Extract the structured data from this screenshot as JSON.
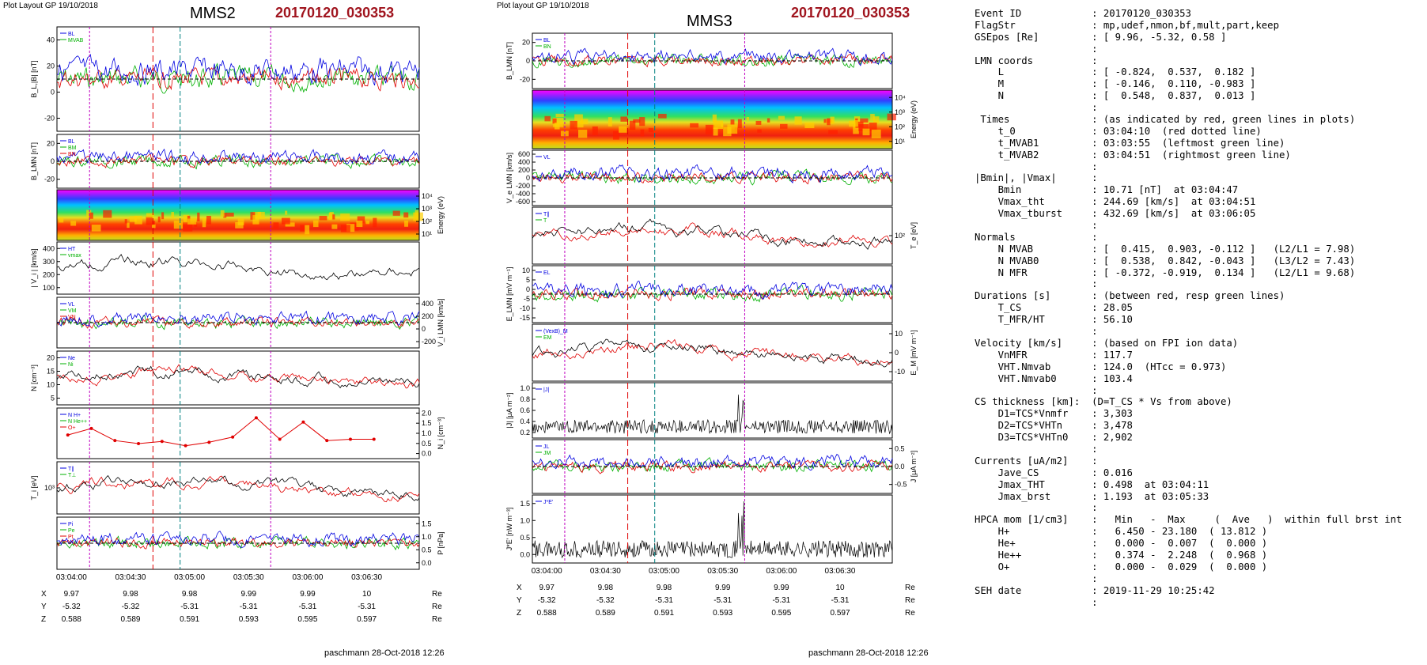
{
  "left_panel": {
    "header": "Plot Layout GP 19/10/2018",
    "spacecraft": "MMS2",
    "event_id": "20170120_030353",
    "footer": "paschmann 28-Oct-2018 12:26",
    "time_ticks": [
      "03:04:00",
      "03:04:30",
      "03:05:00",
      "03:05:30",
      "03:06:00",
      "03:06:30"
    ],
    "position_rows": [
      {
        "label": "X",
        "values": [
          "9.97",
          "9.98",
          "9.98",
          "9.99",
          "9.99",
          "10"
        ],
        "unit": "Re"
      },
      {
        "label": "Y",
        "values": [
          "-5.32",
          "-5.32",
          "-5.31",
          "-5.31",
          "-5.31",
          "-5.31"
        ],
        "unit": "Re"
      },
      {
        "label": "Z",
        "values": [
          "0.588",
          "0.589",
          "0.591",
          "0.593",
          "0.595",
          "0.597"
        ],
        "unit": "Re"
      }
    ],
    "panels": [
      {
        "ylabel": "B_L,|B| [nT]",
        "side": "left",
        "ticks": [
          "40",
          "20",
          "0",
          "-20"
        ],
        "legend": [
          "BL",
          "MVAB"
        ]
      },
      {
        "ylabel": "B_LMN [nT]",
        "side": "left",
        "ticks": [
          "20",
          "0",
          "-20"
        ],
        "legend": [
          "BL",
          "BM",
          "BN"
        ]
      },
      {
        "ylabel": "Energy (eV)",
        "side": "right",
        "ticks": [
          "10⁴",
          "10³",
          "10²",
          "10¹"
        ],
        "legend": []
      },
      {
        "ylabel": "| V_i | [km/s]",
        "side": "left",
        "ticks": [
          "400",
          "300",
          "200",
          "100"
        ],
        "legend": [
          "HT",
          "vmax"
        ]
      },
      {
        "ylabel": "V_i LMN [km/s]",
        "side": "right",
        "ticks": [
          "400",
          "200",
          "0",
          "-200"
        ],
        "legend": [
          "VL",
          "VM",
          "VN"
        ]
      },
      {
        "ylabel": "N [cm⁻³]",
        "side": "left",
        "ticks": [
          "20",
          "15",
          "10",
          "5"
        ],
        "legend": [
          "Ne",
          "Ni"
        ]
      },
      {
        "ylabel": "N_i [cm⁻³]",
        "side": "right",
        "ticks": [
          "2.0",
          "1.5",
          "1.0",
          "0.5",
          "0.0"
        ],
        "legend": [
          "N H+",
          "N He++",
          "O+"
        ]
      },
      {
        "ylabel": "T_i [eV]",
        "side": "left",
        "ticks": [
          "10³"
        ],
        "legend": [
          "T∥",
          "T⊥"
        ]
      },
      {
        "ylabel": "P [nPa]",
        "side": "right",
        "ticks": [
          "1.5",
          "1.0",
          "0.5",
          "0.0"
        ],
        "legend": [
          "Pi",
          "Pe",
          "Pt"
        ]
      }
    ]
  },
  "mid_panel": {
    "header": "Plot layout GP 19/10/2018",
    "spacecraft": "MMS3",
    "event_id": "20170120_030353",
    "footer": "paschmann 28-Oct-2018 12:26",
    "time_ticks": [
      "03:04:00",
      "03:04:30",
      "03:05:00",
      "03:05:30",
      "03:06:00",
      "03:06:30"
    ],
    "position_rows": [
      {
        "label": "X",
        "values": [
          "9.97",
          "9.98",
          "9.98",
          "9.99",
          "9.99",
          "10"
        ],
        "unit": "Re"
      },
      {
        "label": "Y",
        "values": [
          "-5.32",
          "-5.32",
          "-5.31",
          "-5.31",
          "-5.31",
          "-5.31"
        ],
        "unit": "Re"
      },
      {
        "label": "Z",
        "values": [
          "0.588",
          "0.589",
          "0.591",
          "0.593",
          "0.595",
          "0.597"
        ],
        "unit": "Re"
      }
    ],
    "panels": [
      {
        "ylabel": "B_LMN [nT]",
        "side": "left",
        "ticks": [
          "20",
          "0",
          "-20"
        ],
        "legend": [
          "BL",
          "BN"
        ]
      },
      {
        "ylabel": "Energy (eV)",
        "side": "right",
        "ticks": [
          "10⁴",
          "10³",
          "10²",
          "10¹"
        ],
        "legend": []
      },
      {
        "ylabel": "V_e LMN [km/s]",
        "side": "left",
        "ticks": [
          "600",
          "400",
          "200",
          "0",
          "-200",
          "-400",
          "-600"
        ],
        "legend": [
          "VL"
        ]
      },
      {
        "ylabel": "T_e [eV]",
        "side": "right",
        "ticks": [
          "10²"
        ],
        "legend": [
          "T∥",
          "T"
        ]
      },
      {
        "ylabel": "E_LMN [mV m⁻¹]",
        "side": "left",
        "ticks": [
          "10",
          "5",
          "0",
          "-5",
          "-10",
          "-15"
        ],
        "legend": [
          "EL"
        ]
      },
      {
        "ylabel": "E_M [mV m⁻¹]",
        "side": "right",
        "ticks": [
          "10",
          "0",
          "-10"
        ],
        "legend": [
          "(VexB)_M",
          "EM"
        ]
      },
      {
        "ylabel": "|J| [μA m⁻²]",
        "side": "left",
        "ticks": [
          "1.0",
          "0.8",
          "0.6",
          "0.4",
          "0.2"
        ],
        "legend": [
          "|J|"
        ]
      },
      {
        "ylabel": "J [μA m⁻²]",
        "side": "right",
        "ticks": [
          "0.5",
          "0.0",
          "-0.5"
        ],
        "legend": [
          "JL",
          "JM"
        ]
      },
      {
        "ylabel": "J*E' [nW m⁻³]",
        "side": "left",
        "ticks": [
          "1.5",
          "1.0",
          "0.5",
          "0.0"
        ],
        "legend": [
          "J*E'"
        ]
      }
    ]
  },
  "info_lines": [
    "Event ID            : 20170120_030353",
    "FlagStr             : mp,udef,nmon,bf,mult,part,keep",
    "GSEpos [Re]         : [ 9.96, -5.32, 0.58 ]",
    "                    :",
    "LMN coords          :",
    "    L               : [ -0.824,  0.537,  0.182 ]",
    "    M               : [ -0.146,  0.110, -0.983 ]",
    "    N               : [  0.548,  0.837,  0.013 ]",
    "                    :",
    " Times              : (as indicated by red, green lines in plots)",
    "    t_0             : 03:04:10  (red dotted line)",
    "    t_MVAB1         : 03:03:55  (leftmost green line)",
    "    t_MVAB2         : 03:04:51  (rightmost green line)",
    "                    :",
    "|Bmin|, |Vmax|      :",
    "    Bmin            : 10.71 [nT]  at 03:04:47",
    "    Vmax_tht        : 244.69 [km/s]  at 03:04:51",
    "    Vmax_tburst     : 432.69 [km/s]  at 03:06:05",
    "                    :",
    "Normals             :",
    "    N MVAB          : [  0.415,  0.903, -0.112 ]   (L2/L1 = 7.98)",
    "    N MVAB0         : [  0.538,  0.842, -0.043 ]   (L3/L2 = 7.43)",
    "    N MFR           : [ -0.372, -0.919,  0.134 ]   (L2/L1 = 9.68)",
    "                    :",
    "Durations [s]       : (between red, resp green lines)",
    "    T_CS            : 28.05",
    "    T_MFR/HT        : 56.10",
    "                    :",
    "Velocity [km/s]     : (based on FPI ion data)",
    "    VnMFR           : 117.7",
    "    VHT.Nmvab       : 124.0  (HTcc = 0.973)",
    "    VHT.Nmvab0      : 103.4",
    "                    :",
    "CS thickness [km]:  (D=T_CS * Vs from above)",
    "    D1=TCS*Vnmfr    : 3,303",
    "    D2=TCS*VHTn     : 3,478",
    "    D3=TCS*VHTn0    : 2,902",
    "                    :",
    "Currents [uA/m2]    :",
    "    Jave_CS         : 0.016",
    "    Jmax_THT        : 0.498  at 03:04:11",
    "    Jmax_brst       : 1.193  at 03:05:33",
    "                    :",
    "HPCA mom [1/cm3]    :   Min   -  Max     (  Ave   )  within full brst int",
    "    H+              :   6.450 - 23.180  ( 13.812 )",
    "    He+             :   0.000 -  0.007  (  0.000 )",
    "    He++            :   0.374 -  2.248  (  0.968 )",
    "    O+              :   0.000 -  0.029  (  0.000 )",
    "                    :",
    "SEH date            : 2019-11-29 10:25:42",
    "                    :"
  ],
  "chart_data": [
    {
      "type": "line",
      "title": "MMS2 20170120_030353",
      "x_ticks": [
        "03:04:00",
        "03:04:30",
        "03:05:00",
        "03:05:30",
        "03:06:00",
        "03:06:30"
      ],
      "panels": 9
    },
    {
      "type": "line",
      "title": "MMS3 20170120_030353",
      "x_ticks": [
        "03:04:00",
        "03:04:30",
        "03:05:00",
        "03:05:30",
        "03:06:00",
        "03:06:30"
      ],
      "panels": 9
    }
  ]
}
